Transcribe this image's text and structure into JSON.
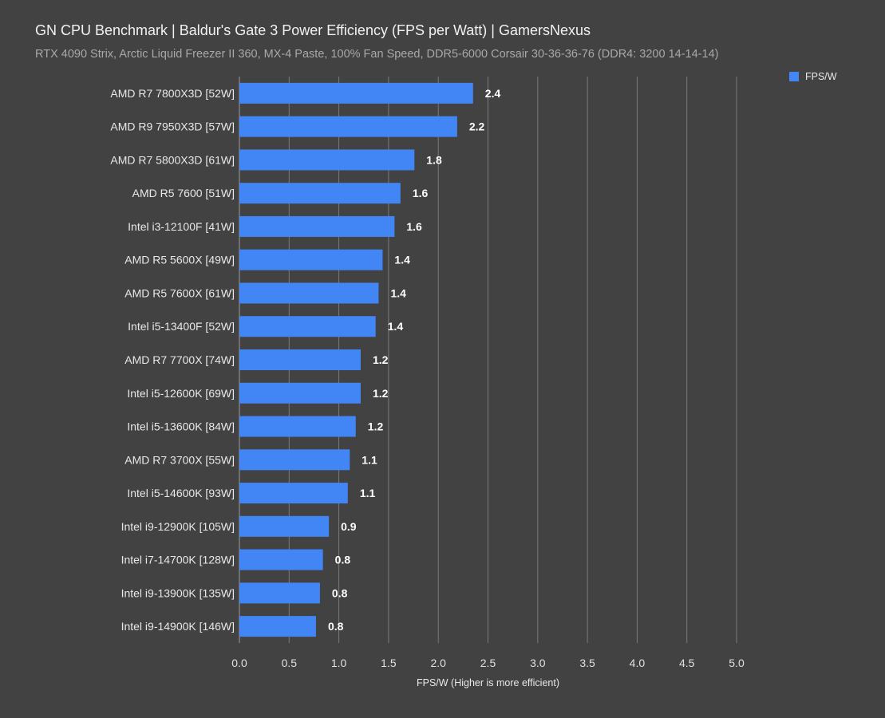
{
  "chart_data": {
    "type": "bar",
    "orientation": "horizontal",
    "title": "GN CPU Benchmark | Baldur's Gate 3 Power Efficiency (FPS per Watt) | GamersNexus",
    "subtitle": "RTX 4090 Strix, Arctic Liquid Freezer II 360, MX-4 Paste, 100% Fan Speed, DDR5-6000 Corsair 30-36-36-76 (DDR4: 3200 14-14-14)",
    "xlabel": "FPS/W (Higher is more efficient)",
    "ylabel": "",
    "xlim": [
      0,
      5
    ],
    "xticks": [
      "0.0",
      "0.5",
      "1.0",
      "1.5",
      "2.0",
      "2.5",
      "3.0",
      "3.5",
      "4.0",
      "4.5",
      "5.0"
    ],
    "grid": true,
    "legend_position": "top-right",
    "series": [
      {
        "name": "FPS/W",
        "color": "#4285f4",
        "values": [
          2.35,
          2.19,
          1.76,
          1.62,
          1.56,
          1.44,
          1.4,
          1.37,
          1.22,
          1.22,
          1.17,
          1.11,
          1.09,
          0.9,
          0.84,
          0.81,
          0.77
        ],
        "labels": [
          "2.4",
          "2.2",
          "1.8",
          "1.6",
          "1.6",
          "1.4",
          "1.4",
          "1.4",
          "1.2",
          "1.2",
          "1.2",
          "1.1",
          "1.1",
          "0.9",
          "0.8",
          "0.8",
          "0.8"
        ]
      }
    ],
    "categories": [
      "AMD R7 7800X3D [52W]",
      "AMD R9 7950X3D [57W]",
      "AMD R7 5800X3D [61W]",
      "AMD R5 7600 [51W]",
      "Intel i3-12100F [41W]",
      "AMD R5 5600X [49W]",
      "AMD R5 7600X [61W]",
      "Intel i5-13400F [52W]",
      "AMD R7 7700X [74W]",
      "Intel i5-12600K [69W]",
      "Intel i5-13600K [84W]",
      "AMD R7 3700X [55W]",
      "Intel i5-14600K [93W]",
      "Intel i9-12900K [105W]",
      "Intel i7-14700K [128W]",
      "Intel i9-13900K [135W]",
      "Intel i9-14900K [146W]"
    ]
  }
}
